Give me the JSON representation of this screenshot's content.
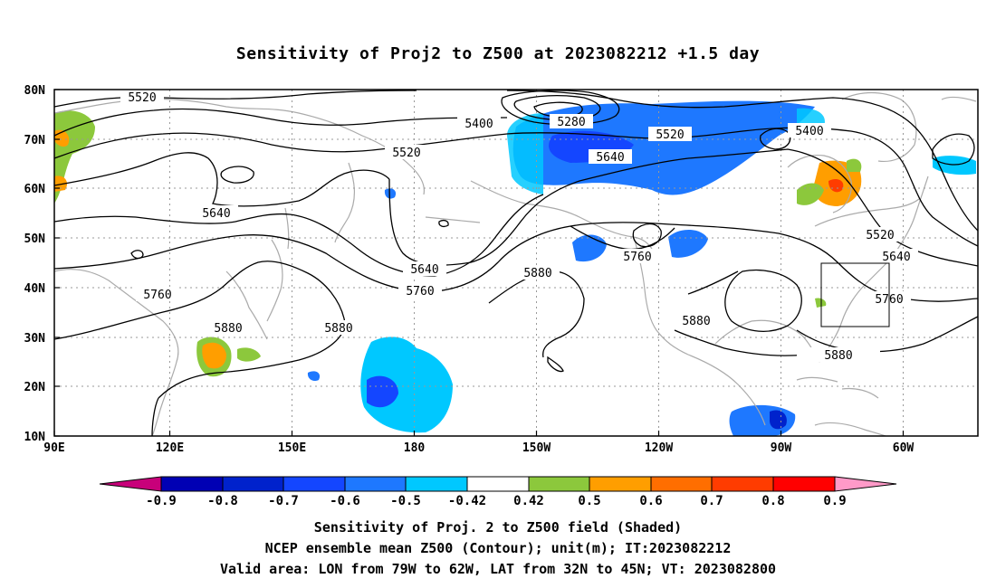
{
  "title": "Sensitivity of Proj2 to Z500 at 2023082212 +1.5 day",
  "map": {
    "lon_labels": [
      "90E",
      "120E",
      "150E",
      "180",
      "150W",
      "120W",
      "90W",
      "60W"
    ],
    "lat_labels": [
      "80N",
      "70N",
      "60N",
      "50N",
      "40N",
      "30N",
      "20N",
      "10N"
    ],
    "contour_labels": [
      {
        "text": "5520"
      },
      {
        "text": "5400"
      },
      {
        "text": "5280"
      },
      {
        "text": "5520"
      },
      {
        "text": "5520"
      },
      {
        "text": "5400"
      },
      {
        "text": "5640"
      },
      {
        "text": "5640"
      },
      {
        "text": "5760"
      },
      {
        "text": "5640"
      },
      {
        "text": "5760"
      },
      {
        "text": "5880"
      },
      {
        "text": "5760"
      },
      {
        "text": "5880"
      },
      {
        "text": "5880"
      },
      {
        "text": "5520"
      },
      {
        "text": "5640"
      },
      {
        "text": "5760"
      },
      {
        "text": "5880"
      },
      {
        "text": "5880"
      }
    ],
    "valid_area_box": {
      "lon": [
        "79W",
        "62W"
      ],
      "lat": [
        "32N",
        "45N"
      ]
    },
    "colors": {
      "land": "#aaaaaa",
      "contour": "#000000",
      "grid": "#999999"
    }
  },
  "colorbar": {
    "labels": [
      "-0.9",
      "-0.8",
      "-0.7",
      "-0.6",
      "-0.5",
      "-0.42",
      "0.42",
      "0.5",
      "0.6",
      "0.7",
      "0.8",
      "0.9"
    ],
    "colors": [
      "#c8007a",
      "#0000b4",
      "#0022cc",
      "#1446ff",
      "#1e78ff",
      "#00c8ff",
      "#ffffff",
      "#8cc83c",
      "#ff9e00",
      "#ff6e00",
      "#ff3c00",
      "#ff0000",
      "#ff9ac8"
    ]
  },
  "footer": {
    "line1": "Sensitivity of Proj. 2 to Z500 field (Shaded)",
    "line2": "NCEP ensemble mean Z500 (Contour); unit(m); IT:2023082212",
    "line3": "Valid area: LON from 79W to 62W, LAT from 32N to 45N; VT: 2023082800"
  }
}
